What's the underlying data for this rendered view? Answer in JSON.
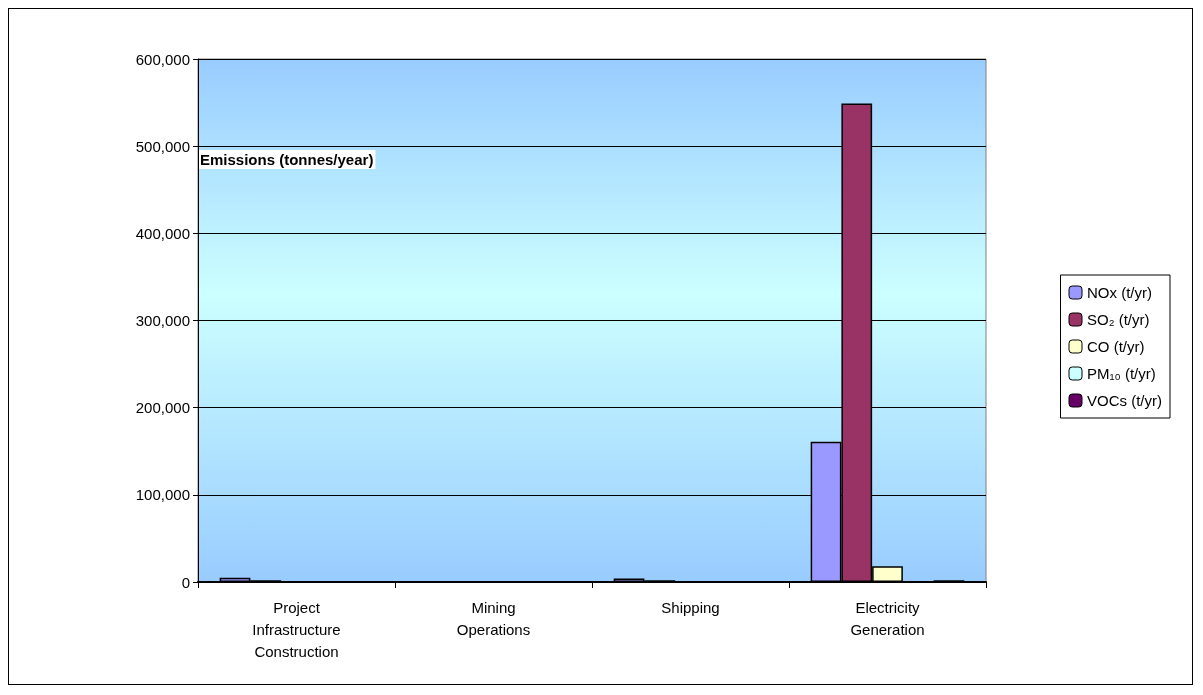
{
  "chart_data": {
    "type": "bar",
    "ylabel": "Emissions (tonnes/year)",
    "categories": [
      "Project\nInfrastructure\nConstruction",
      "Mining\nOperations",
      "Shipping",
      "Electricity\nGeneration"
    ],
    "series": [
      {
        "name": "NOx (t/yr)",
        "color": "#9999ff",
        "values": [
          5000,
          null,
          4000,
          161000
        ]
      },
      {
        "name": "SO₂ (t/yr)",
        "color": "#993366",
        "values": [
          2000,
          null,
          2000,
          549000
        ]
      },
      {
        "name": "CO (t/yr)",
        "color": "#ffffcc",
        "values": [
          null,
          null,
          null,
          18000
        ]
      },
      {
        "name": "PM₁₀ (t/yr)",
        "color": "#ccffff",
        "values": [
          null,
          null,
          null,
          null
        ]
      },
      {
        "name": "VOCs (t/yr)",
        "color": "#660066",
        "values": [
          null,
          null,
          null,
          2000
        ]
      }
    ],
    "ylim": [
      0,
      600000
    ],
    "yticks": [
      0,
      {
        "value": 100000,
        "label": "100,000"
      },
      {
        "value": 200000,
        "label": "200,000"
      },
      {
        "value": 300000,
        "label": "300,000"
      },
      {
        "value": 400000,
        "label": "400,000"
      },
      {
        "value": 500000,
        "label": "500,000"
      },
      {
        "value": 600000,
        "label": "600,000"
      }
    ],
    "grid": "y",
    "legend": "right"
  }
}
